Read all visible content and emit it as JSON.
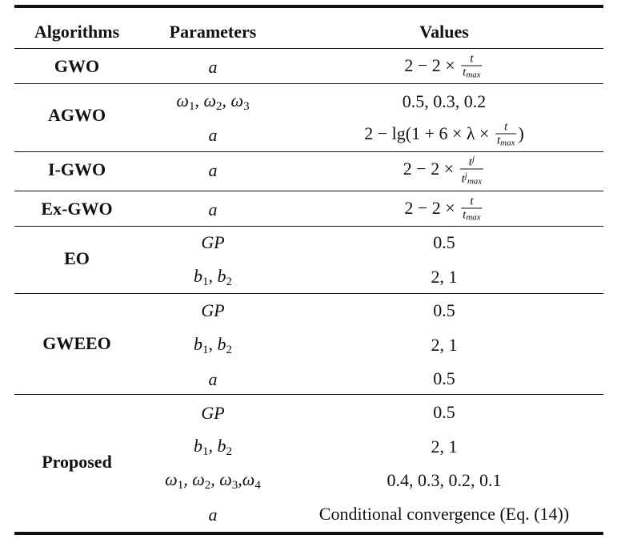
{
  "header": {
    "col1": "Algorithms",
    "col2": "Parameters",
    "col3": "Values"
  },
  "rows": {
    "gwo": {
      "name": "GWO",
      "p1": "a",
      "v1_prefix": "2 − 2 ×",
      "v1_num": "t",
      "v1_den": "t",
      "v1_den_sub": "max"
    },
    "agwo": {
      "name": "AGWO",
      "p1": "ω",
      "p1_s1": "1",
      "p1_s2": "2",
      "p1_s3": "3",
      "v1": "0.5, 0.3, 0.2",
      "p2": "a",
      "v2_prefix": "2 − lg(1 + 6 × λ ×",
      "v2_num": "t",
      "v2_den": "t",
      "v2_den_sub": "max",
      "v2_suffix": ")"
    },
    "igwo": {
      "name": "I-GWO",
      "p1": "a",
      "v1_prefix": "2 − 2 ×",
      "v1_num": "t",
      "v1_num_sup": "j",
      "v1_den": "t",
      "v1_den_sup": "j",
      "v1_den_sub": "max"
    },
    "exgwo": {
      "name": "Ex-GWO",
      "p1": "a",
      "v1_prefix": "2 − 2 ×",
      "v1_num": "t",
      "v1_den": "t",
      "v1_den_sub": "max"
    },
    "eo": {
      "name": "EO",
      "p1": "GP",
      "v1": "0.5",
      "p2": "b",
      "p2_s1": "1",
      "p2_s2": "2",
      "v2": "2, 1"
    },
    "gweeo": {
      "name": "GWEEO",
      "p1": "GP",
      "v1": "0.5",
      "p2": "b",
      "p2_s1": "1",
      "p2_s2": "2",
      "v2": "2, 1",
      "p3": "a",
      "v3": "0.5"
    },
    "proposed": {
      "name": "Proposed",
      "p1": "GP",
      "v1": "0.5",
      "p2": "b",
      "p2_s1": "1",
      "p2_s2": "2",
      "v2": "2, 1",
      "p3": "ω",
      "p3_s1": "1",
      "p3_s2": "2",
      "p3_s3": "3",
      "p3_s4": "4",
      "v3": "0.4, 0.3, 0.2, 0.1",
      "p4": "a",
      "v4": "Conditional convergence (Eq. (14))"
    }
  }
}
